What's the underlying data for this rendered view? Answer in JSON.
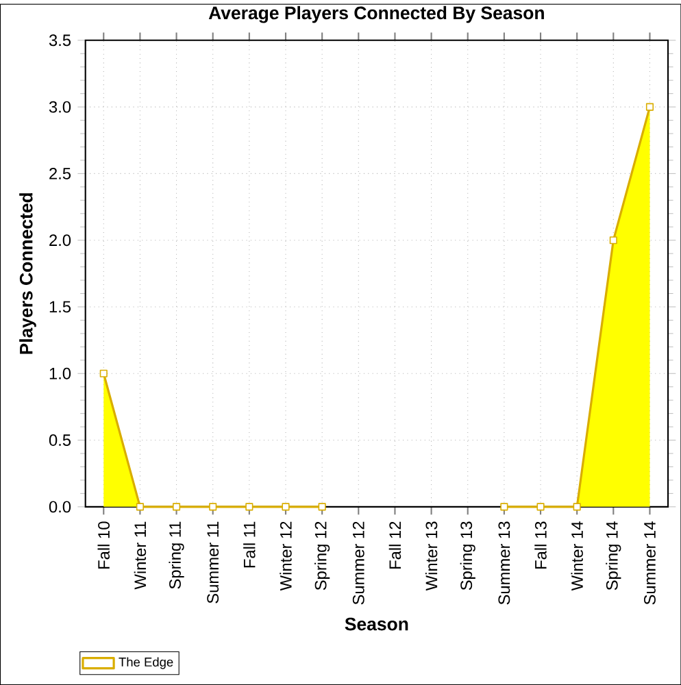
{
  "chart_data": {
    "type": "area",
    "title": "Average Players Connected By Season",
    "xlabel": "Season",
    "ylabel": "Players Connected",
    "categories": [
      "Fall 10",
      "Winter 11",
      "Spring 11",
      "Summer 11",
      "Fall 11",
      "Winter 12",
      "Spring 12",
      "Summer 12",
      "Fall 12",
      "Winter 13",
      "Spring 13",
      "Summer 13",
      "Fall 13",
      "Winter 14",
      "Spring 14",
      "Summer 14"
    ],
    "series": [
      {
        "name": "The Edge",
        "color": "#ffff00",
        "values": [
          1,
          0,
          0,
          0,
          0,
          0,
          0,
          null,
          null,
          null,
          null,
          0,
          0,
          0,
          2,
          3
        ]
      }
    ],
    "ylim": [
      0,
      3.5
    ],
    "yticks": [
      {
        "value": 0,
        "label": "0.0"
      },
      {
        "value": 0.5,
        "label": "0.5"
      },
      {
        "value": 1,
        "label": "1.0"
      },
      {
        "value": 1.5,
        "label": "1.5"
      },
      {
        "value": 2,
        "label": "2.0"
      },
      {
        "value": 2.5,
        "label": "2.5"
      },
      {
        "value": 3,
        "label": "3.0"
      },
      {
        "value": 3.5,
        "label": "3.5"
      }
    ],
    "grid": true,
    "legend": "bottom left",
    "marker": "square"
  }
}
